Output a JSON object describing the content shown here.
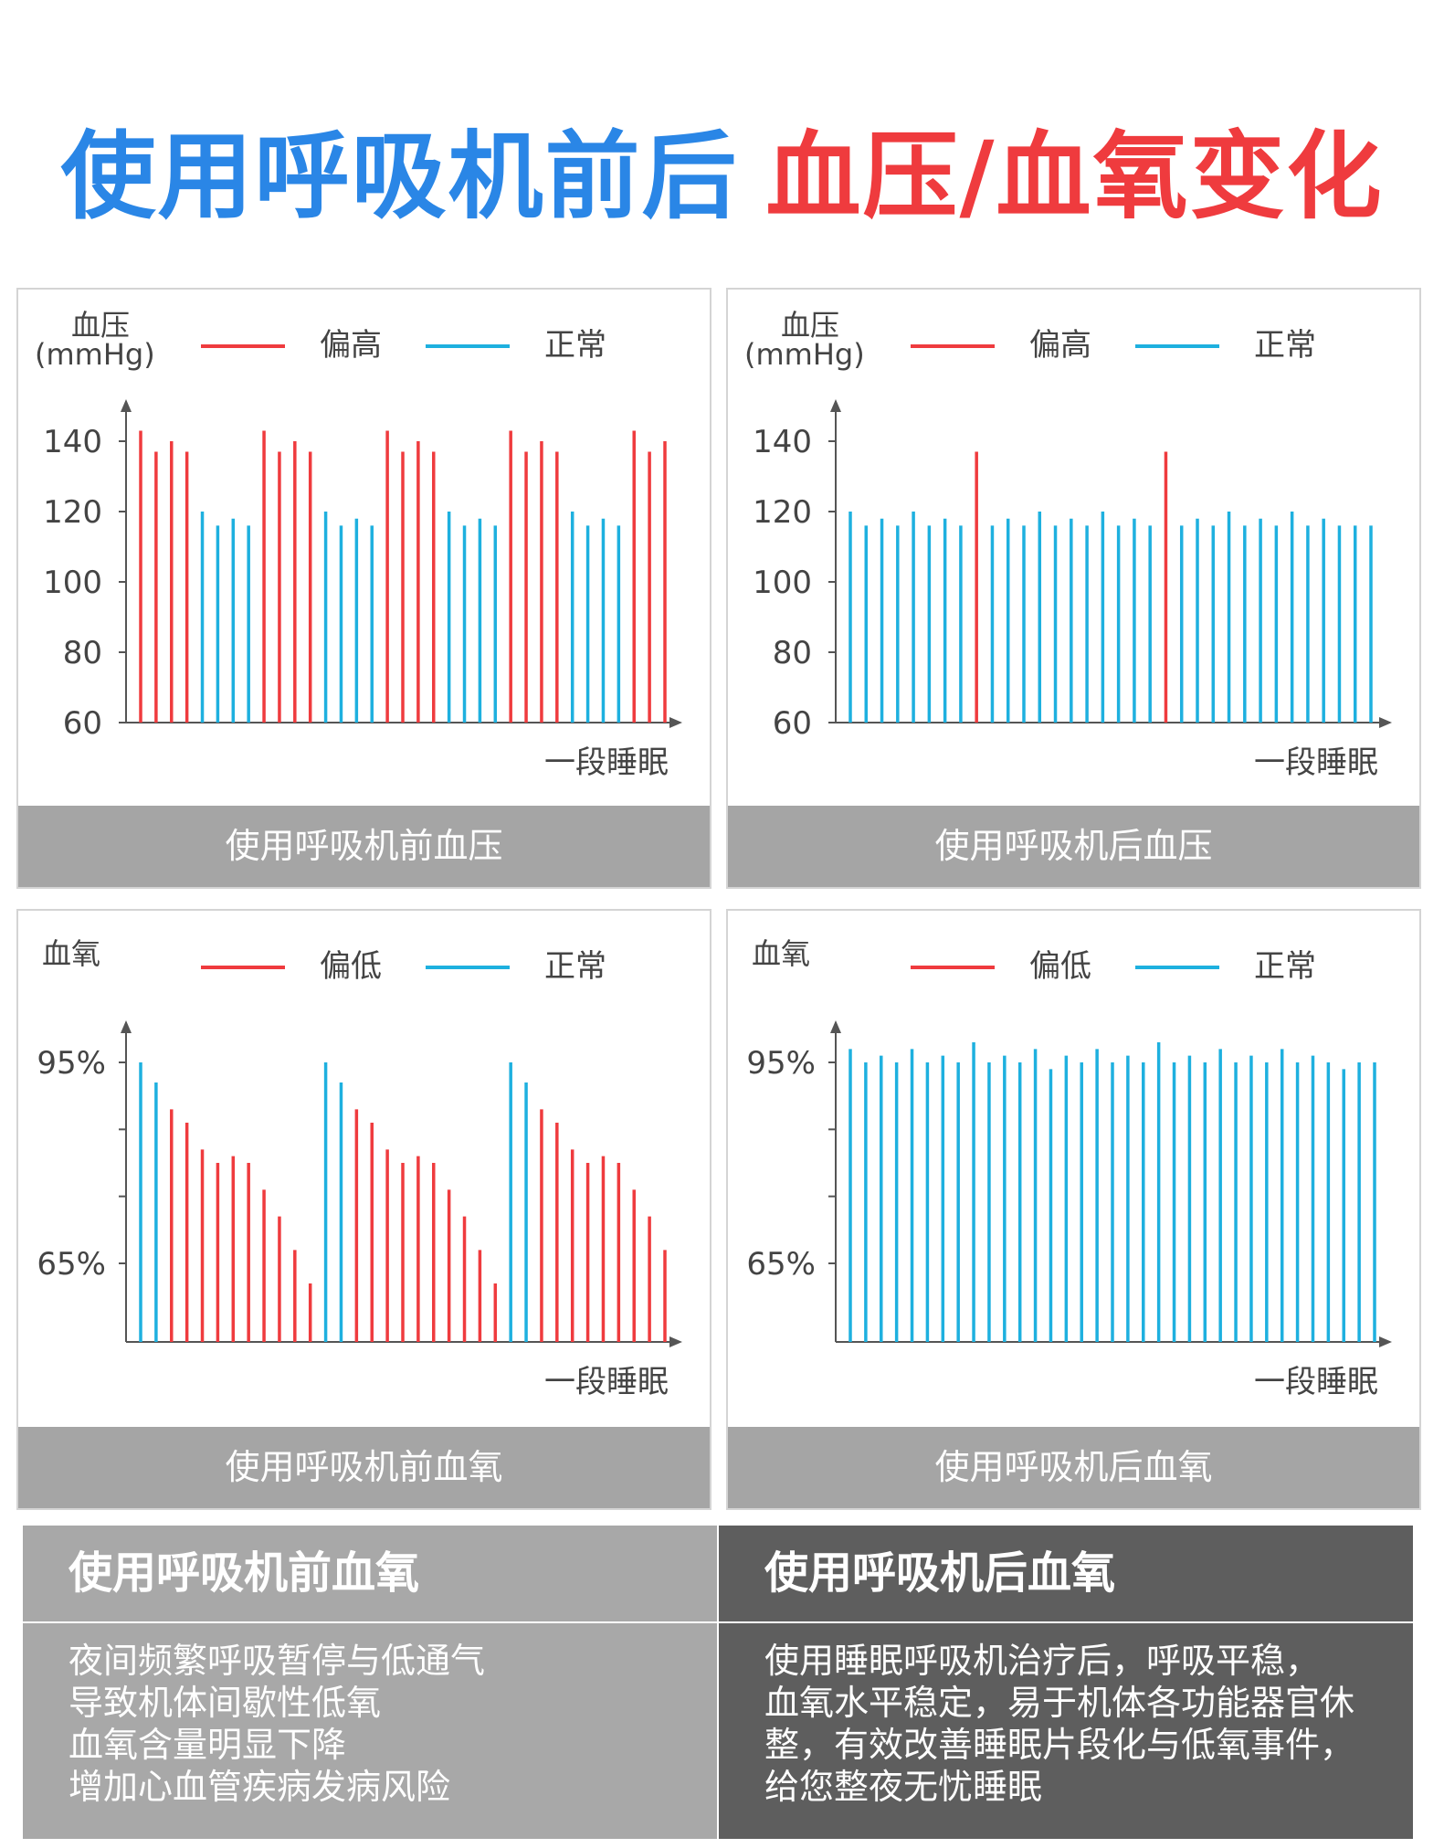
{
  "title": {
    "part1": "使用呼吸机前后",
    "part2": "血压/血氧变化"
  },
  "colors": {
    "title_blue": "#2a86e6",
    "title_red": "#ef3b3e",
    "high": "#ef3b3e",
    "normal": "#1eb0df",
    "caption_bg": "#a5a5a5",
    "left_box": "#a8a8a8",
    "right_box": "#5e5e5e"
  },
  "chart_data": [
    {
      "id": "bp-before",
      "type": "bar",
      "ylabel": "血压\n(mmHg)",
      "xlabel": "一段睡眠",
      "legend": [
        {
          "label": "偏高",
          "color": "#ef3b3e"
        },
        {
          "label": "正常",
          "color": "#1eb0df"
        }
      ],
      "yticks": [
        "140",
        "120",
        "100",
        "80",
        "60"
      ],
      "ylim": [
        60,
        146
      ],
      "values": [
        143,
        137,
        140,
        137,
        120,
        116,
        118,
        116,
        143,
        137,
        140,
        137,
        120,
        116,
        118,
        116,
        143,
        137,
        140,
        137,
        120,
        116,
        118,
        116,
        143,
        137,
        140,
        137,
        120,
        116,
        118,
        116,
        143,
        137,
        140
      ],
      "statuses": [
        "high",
        "high",
        "high",
        "high",
        "normal",
        "normal",
        "normal",
        "normal",
        "high",
        "high",
        "high",
        "high",
        "normal",
        "normal",
        "normal",
        "normal",
        "high",
        "high",
        "high",
        "high",
        "normal",
        "normal",
        "normal",
        "normal",
        "high",
        "high",
        "high",
        "high",
        "normal",
        "normal",
        "normal",
        "normal",
        "high",
        "high",
        "high"
      ],
      "caption": "使用呼吸机前血压"
    },
    {
      "id": "bp-after",
      "type": "bar",
      "ylabel": "血压\n(mmHg)",
      "xlabel": "一段睡眠",
      "legend": [
        {
          "label": "偏高",
          "color": "#ef3b3e"
        },
        {
          "label": "正常",
          "color": "#1eb0df"
        }
      ],
      "yticks": [
        "140",
        "120",
        "100",
        "80",
        "60"
      ],
      "ylim": [
        60,
        146
      ],
      "values": [
        120,
        116,
        118,
        116,
        120,
        116,
        118,
        116,
        137,
        116,
        118,
        116,
        120,
        116,
        118,
        116,
        120,
        116,
        118,
        116,
        137,
        116,
        118,
        116,
        120,
        116,
        118,
        116,
        120,
        116,
        118,
        116,
        116,
        116
      ],
      "statuses": [
        "normal",
        "normal",
        "normal",
        "normal",
        "normal",
        "normal",
        "normal",
        "normal",
        "high",
        "normal",
        "normal",
        "normal",
        "normal",
        "normal",
        "normal",
        "normal",
        "normal",
        "normal",
        "normal",
        "normal",
        "high",
        "normal",
        "normal",
        "normal",
        "normal",
        "normal",
        "normal",
        "normal",
        "normal",
        "normal",
        "normal",
        "normal",
        "normal",
        "normal"
      ],
      "caption": "使用呼吸机后血压"
    },
    {
      "id": "spo2-before",
      "type": "bar",
      "ylabel": "血氧",
      "xlabel": "一段睡眠",
      "legend": [
        {
          "label": "偏低",
          "color": "#ef3b3e"
        },
        {
          "label": "正常",
          "color": "#1eb0df"
        }
      ],
      "yticks": [
        "95%",
        "65%"
      ],
      "values": [
        95,
        92,
        88,
        86,
        82,
        80,
        81,
        80,
        76,
        72,
        67,
        62,
        95,
        92,
        88,
        86,
        82,
        80,
        81,
        80,
        76,
        72,
        67,
        62,
        95,
        92,
        88,
        86,
        82,
        80,
        81,
        80,
        76,
        72,
        67
      ],
      "statuses": [
        "normal",
        "normal",
        "high",
        "high",
        "high",
        "high",
        "high",
        "high",
        "high",
        "high",
        "high",
        "high",
        "normal",
        "normal",
        "high",
        "high",
        "high",
        "high",
        "high",
        "high",
        "high",
        "high",
        "high",
        "high",
        "normal",
        "normal",
        "high",
        "high",
        "high",
        "high",
        "high",
        "high",
        "high",
        "high",
        "high"
      ],
      "caption": "使用呼吸机前血氧"
    },
    {
      "id": "spo2-after",
      "type": "bar",
      "ylabel": "血氧",
      "xlabel": "一段睡眠",
      "legend": [
        {
          "label": "偏低",
          "color": "#ef3b3e"
        },
        {
          "label": "正常",
          "color": "#1eb0df"
        }
      ],
      "yticks": [
        "95%",
        "65%"
      ],
      "values": [
        97,
        95,
        96,
        95,
        97,
        95,
        96,
        95,
        98,
        95,
        96,
        95,
        97,
        94,
        96,
        95,
        97,
        95,
        96,
        95,
        98,
        95,
        96,
        95,
        97,
        95,
        96,
        95,
        97,
        95,
        96,
        95,
        94,
        95,
        95
      ],
      "statuses": [
        "normal",
        "normal",
        "normal",
        "normal",
        "normal",
        "normal",
        "normal",
        "normal",
        "normal",
        "normal",
        "normal",
        "normal",
        "normal",
        "normal",
        "normal",
        "normal",
        "normal",
        "normal",
        "normal",
        "normal",
        "normal",
        "normal",
        "normal",
        "normal",
        "normal",
        "normal",
        "normal",
        "normal",
        "normal",
        "normal",
        "normal",
        "normal",
        "normal",
        "normal",
        "normal"
      ],
      "caption": "使用呼吸机后血氧"
    }
  ],
  "comparison": {
    "left": {
      "title": "使用呼吸机前血氧",
      "lines": [
        "夜间频繁呼吸暂停与低通气",
        "导致机体间歇性低氧",
        "血氧含量明显下降",
        "增加心血管疾病发病风险"
      ]
    },
    "right": {
      "title": "使用呼吸机后血氧",
      "lines": [
        "使用睡眠呼吸机治疗后，呼吸平稳，",
        "血氧水平稳定，易于机体各功能器官休",
        "整，有效改善睡眠片段化与低氧事件，",
        "给您整夜无忧睡眠"
      ]
    }
  }
}
